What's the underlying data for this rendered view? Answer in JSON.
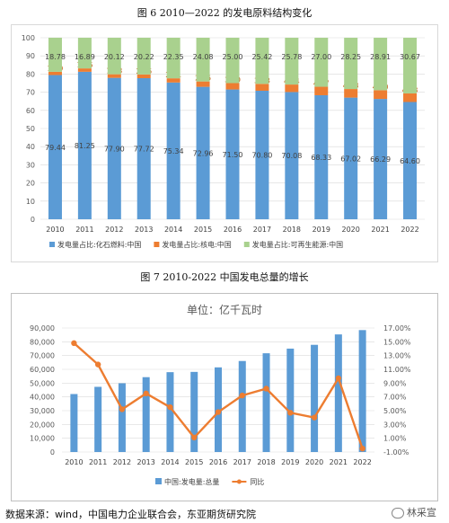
{
  "figure6_title": "图 6  2010—2022 的发电原料结构变化",
  "figure7_title": "图 7   2010-2022 中国发电总量的增长",
  "source_note": "数据来源：wind，中国电力企业联合会，东亚期货研究院",
  "watermark": "林采宣",
  "colors": {
    "fossil": "#5b9bd5",
    "nuclear": "#ed7d31",
    "renewable": "#a9d18e",
    "line": "#ed7d31",
    "bar": "#5b9bd5"
  },
  "chart_data": [
    {
      "type": "bar",
      "stacked": true,
      "categories": [
        "2010",
        "2011",
        "2012",
        "2013",
        "2014",
        "2015",
        "2016",
        "2017",
        "2018",
        "2019",
        "2020",
        "2021",
        "2022"
      ],
      "series": [
        {
          "name": "发电量占比:化石燃料:中国",
          "values": [
            79.44,
            81.25,
            77.9,
            77.72,
            75.34,
            72.96,
            71.5,
            70.8,
            70.08,
            68.33,
            67.02,
            66.29,
            64.6
          ]
        },
        {
          "name": "发电量占比:核电:中国",
          "values": [
            1.79,
            1.86,
            1.98,
            2.06,
            2.31,
            2.96,
            3.5,
            3.78,
            4.14,
            4.67,
            4.73,
            4.8,
            4.73
          ]
        },
        {
          "name": "发电量占比:可再生能源:中国",
          "values": [
            18.78,
            16.89,
            20.12,
            20.22,
            22.35,
            24.08,
            25.0,
            25.42,
            25.78,
            27.0,
            28.25,
            28.91,
            30.67
          ]
        }
      ],
      "yticks": [
        "0",
        "10",
        "20",
        "30",
        "40",
        "50",
        "60",
        "70",
        "80",
        "90",
        "100"
      ],
      "ylim": [
        0,
        100
      ],
      "legend_position": "bottom"
    },
    {
      "type": "bar",
      "title": "单位：亿千瓦时",
      "categories": [
        "2010",
        "2011",
        "2012",
        "2013",
        "2014",
        "2015",
        "2016",
        "2017",
        "2018",
        "2019",
        "2020",
        "2021",
        "2022"
      ],
      "series": [
        {
          "name": "中国:发电量:总量",
          "type": "bar",
          "axis": "left",
          "values": [
            42072,
            47306,
            49876,
            54316,
            57945,
            58146,
            61425,
            66044,
            71661,
            75034,
            77791,
            85342,
            88487
          ]
        },
        {
          "name": "同比",
          "type": "line",
          "axis": "right",
          "values": [
            14.8,
            11.7,
            5.2,
            7.5,
            5.5,
            1.1,
            4.8,
            7.2,
            8.2,
            4.7,
            4.0,
            9.7,
            -0.5
          ]
        }
      ],
      "yticks_left": [
        "0",
        "10,000",
        "20,000",
        "30,000",
        "40,000",
        "50,000",
        "60,000",
        "70,000",
        "80,000",
        "90,000"
      ],
      "ylim_left": [
        0,
        90000
      ],
      "yticks_right": [
        "-1.00%",
        "1.00%",
        "3.00%",
        "5.00%",
        "7.00%",
        "9.00%",
        "11.00%",
        "13.00%",
        "15.00%",
        "17.00%"
      ],
      "ylim_right": [
        -1,
        17
      ],
      "legend_position": "bottom"
    }
  ]
}
